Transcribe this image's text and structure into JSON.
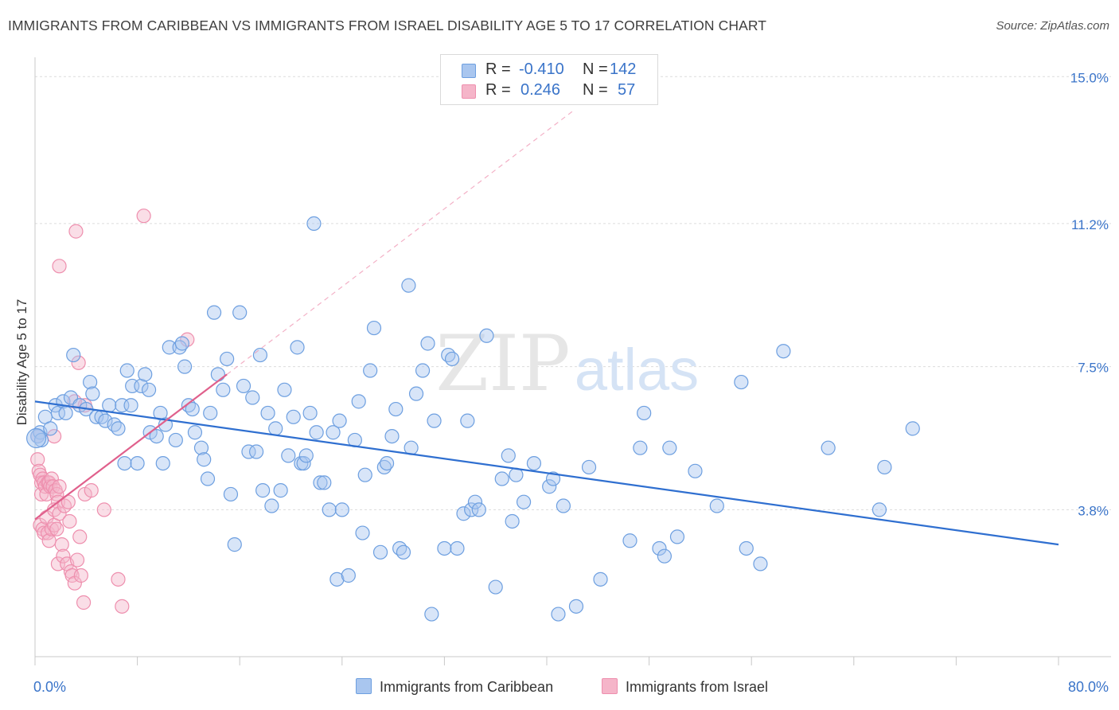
{
  "title": "IMMIGRANTS FROM CARIBBEAN VS IMMIGRANTS FROM ISRAEL DISABILITY AGE 5 TO 17 CORRELATION CHART",
  "source": "Source: ZipAtlas.com",
  "watermark": {
    "zip": "ZIP",
    "atlas": "atlas"
  },
  "legend": {
    "r_label": "R =",
    "n_label": "N =",
    "rows": [
      {
        "r": "-0.410",
        "n": "142"
      },
      {
        "r": "0.246",
        "n": "57"
      }
    ]
  },
  "colors": {
    "blue_fill": "#a9c6ef",
    "blue_stroke": "#6d9fe0",
    "blue_line": "#2f6fd0",
    "pink_fill": "#f5b5c9",
    "pink_stroke": "#ee8fae",
    "pink_line": "#e0608c",
    "tick_label": "#3a74c9"
  },
  "chart_data": {
    "type": "scatter",
    "title": "IMMIGRANTS FROM CARIBBEAN VS IMMIGRANTS FROM ISRAEL DISABILITY AGE 5 TO 17 CORRELATION CHART",
    "xlabel": "",
    "ylabel": "Disability Age 5 to 17",
    "xlim": [
      0,
      80
    ],
    "ylim": [
      0,
      15.5
    ],
    "x_tick_labels": [
      "0.0%",
      "80.0%"
    ],
    "y_ticks": [
      3.8,
      7.5,
      11.2,
      15.0
    ],
    "y_tick_labels": [
      "3.8%",
      "7.5%",
      "11.2%",
      "15.0%"
    ],
    "grid": true,
    "legend_position": "top-center",
    "series": [
      {
        "name": "Immigrants from Caribbean",
        "R": -0.41,
        "N": 142,
        "trend": [
          [
            0,
            6.6
          ],
          [
            80,
            2.9
          ]
        ],
        "points": [
          [
            0.2,
            5.7
          ],
          [
            0.4,
            5.8
          ],
          [
            0.5,
            5.6
          ],
          [
            0.8,
            6.2
          ],
          [
            1.2,
            5.9
          ],
          [
            1.6,
            6.5
          ],
          [
            1.8,
            6.3
          ],
          [
            2.2,
            6.6
          ],
          [
            2.4,
            6.3
          ],
          [
            2.8,
            6.7
          ],
          [
            3.0,
            7.8
          ],
          [
            3.5,
            6.5
          ],
          [
            4.0,
            6.4
          ],
          [
            4.3,
            7.1
          ],
          [
            4.5,
            6.8
          ],
          [
            4.8,
            6.2
          ],
          [
            5.2,
            6.2
          ],
          [
            5.5,
            6.1
          ],
          [
            5.8,
            6.5
          ],
          [
            6.2,
            6.0
          ],
          [
            6.5,
            5.9
          ],
          [
            6.8,
            6.5
          ],
          [
            7.0,
            5.0
          ],
          [
            7.2,
            7.4
          ],
          [
            7.5,
            6.5
          ],
          [
            7.6,
            7.0
          ],
          [
            8.0,
            5.0
          ],
          [
            8.3,
            7.0
          ],
          [
            8.6,
            7.3
          ],
          [
            8.9,
            6.9
          ],
          [
            9.0,
            5.8
          ],
          [
            9.5,
            5.7
          ],
          [
            9.8,
            6.3
          ],
          [
            10.0,
            5.0
          ],
          [
            10.2,
            6.0
          ],
          [
            10.5,
            8.0
          ],
          [
            11.0,
            5.6
          ],
          [
            11.3,
            8.0
          ],
          [
            11.5,
            8.1
          ],
          [
            11.7,
            7.5
          ],
          [
            12.0,
            6.5
          ],
          [
            12.3,
            6.4
          ],
          [
            12.5,
            5.8
          ],
          [
            13.0,
            5.4
          ],
          [
            13.2,
            5.1
          ],
          [
            13.5,
            4.6
          ],
          [
            13.7,
            6.3
          ],
          [
            14.0,
            8.9
          ],
          [
            14.3,
            7.3
          ],
          [
            14.7,
            6.9
          ],
          [
            15.0,
            7.7
          ],
          [
            15.3,
            4.2
          ],
          [
            15.6,
            2.9
          ],
          [
            16.0,
            8.9
          ],
          [
            16.3,
            7.0
          ],
          [
            16.7,
            5.3
          ],
          [
            17.0,
            6.7
          ],
          [
            17.3,
            5.3
          ],
          [
            17.6,
            7.8
          ],
          [
            17.8,
            4.3
          ],
          [
            18.2,
            6.3
          ],
          [
            18.5,
            3.9
          ],
          [
            18.8,
            5.9
          ],
          [
            19.2,
            4.3
          ],
          [
            19.5,
            6.9
          ],
          [
            19.8,
            5.2
          ],
          [
            20.2,
            6.2
          ],
          [
            20.5,
            8.0
          ],
          [
            20.8,
            5.0
          ],
          [
            21.0,
            5.0
          ],
          [
            21.2,
            5.2
          ],
          [
            21.5,
            6.3
          ],
          [
            21.8,
            11.2
          ],
          [
            22.0,
            5.8
          ],
          [
            22.3,
            4.5
          ],
          [
            22.6,
            4.5
          ],
          [
            23.0,
            3.8
          ],
          [
            23.3,
            5.8
          ],
          [
            23.6,
            2.0
          ],
          [
            23.8,
            6.1
          ],
          [
            24.0,
            3.8
          ],
          [
            24.5,
            2.1
          ],
          [
            25.0,
            5.6
          ],
          [
            25.3,
            6.6
          ],
          [
            25.6,
            3.2
          ],
          [
            25.8,
            4.7
          ],
          [
            26.2,
            7.4
          ],
          [
            26.5,
            8.5
          ],
          [
            27.0,
            2.7
          ],
          [
            27.3,
            4.9
          ],
          [
            27.5,
            5.0
          ],
          [
            27.9,
            5.7
          ],
          [
            28.2,
            6.4
          ],
          [
            28.5,
            2.8
          ],
          [
            28.8,
            2.7
          ],
          [
            29.2,
            9.6
          ],
          [
            29.4,
            5.4
          ],
          [
            29.8,
            6.8
          ],
          [
            30.3,
            7.4
          ],
          [
            30.7,
            8.1
          ],
          [
            31.0,
            1.1
          ],
          [
            31.2,
            6.1
          ],
          [
            32.0,
            2.8
          ],
          [
            32.3,
            7.8
          ],
          [
            32.6,
            7.7
          ],
          [
            33.0,
            2.8
          ],
          [
            33.5,
            3.7
          ],
          [
            33.8,
            6.1
          ],
          [
            34.1,
            3.8
          ],
          [
            34.4,
            4.0
          ],
          [
            34.7,
            3.8
          ],
          [
            35.3,
            8.3
          ],
          [
            36.0,
            1.8
          ],
          [
            36.5,
            4.6
          ],
          [
            37.0,
            5.2
          ],
          [
            37.3,
            3.5
          ],
          [
            37.6,
            4.7
          ],
          [
            38.2,
            4.0
          ],
          [
            39.0,
            5.0
          ],
          [
            40.2,
            4.4
          ],
          [
            40.5,
            4.6
          ],
          [
            40.9,
            1.1
          ],
          [
            41.3,
            3.9
          ],
          [
            42.3,
            1.3
          ],
          [
            43.3,
            4.9
          ],
          [
            44.2,
            2.0
          ],
          [
            46.5,
            3.0
          ],
          [
            47.3,
            5.4
          ],
          [
            47.6,
            6.3
          ],
          [
            48.8,
            2.8
          ],
          [
            49.2,
            2.6
          ],
          [
            49.6,
            5.4
          ],
          [
            50.2,
            3.1
          ],
          [
            51.6,
            4.8
          ],
          [
            53.3,
            3.9
          ],
          [
            55.2,
            7.1
          ],
          [
            55.6,
            2.8
          ],
          [
            56.7,
            2.4
          ],
          [
            58.5,
            7.9
          ],
          [
            62.0,
            5.4
          ],
          [
            66.0,
            3.8
          ],
          [
            66.4,
            4.9
          ],
          [
            68.6,
            5.9
          ]
        ]
      },
      {
        "name": "Immigrants from Israel",
        "R": 0.246,
        "N": 57,
        "trend": [
          [
            0,
            3.55
          ],
          [
            15,
            7.3
          ]
        ],
        "trend_extended": [
          [
            15,
            7.3
          ],
          [
            42,
            14.1
          ]
        ],
        "points": [
          [
            0.2,
            5.7
          ],
          [
            0.2,
            5.1
          ],
          [
            0.3,
            4.8
          ],
          [
            0.4,
            4.7
          ],
          [
            0.5,
            4.5
          ],
          [
            0.5,
            4.2
          ],
          [
            0.6,
            4.6
          ],
          [
            0.7,
            4.5
          ],
          [
            0.8,
            4.4
          ],
          [
            0.9,
            4.2
          ],
          [
            1.0,
            4.5
          ],
          [
            1.1,
            4.5
          ],
          [
            1.2,
            4.4
          ],
          [
            1.3,
            4.6
          ],
          [
            1.4,
            4.4
          ],
          [
            1.5,
            5.7
          ],
          [
            1.6,
            4.3
          ],
          [
            1.7,
            4.2
          ],
          [
            1.8,
            4.0
          ],
          [
            1.9,
            4.4
          ],
          [
            0.4,
            3.4
          ],
          [
            0.6,
            3.3
          ],
          [
            0.7,
            3.2
          ],
          [
            0.9,
            3.6
          ],
          [
            1.0,
            3.2
          ],
          [
            1.1,
            3.0
          ],
          [
            1.3,
            3.3
          ],
          [
            1.5,
            3.4
          ],
          [
            1.5,
            3.8
          ],
          [
            1.7,
            3.3
          ],
          [
            1.8,
            2.4
          ],
          [
            1.9,
            3.7
          ],
          [
            2.1,
            2.9
          ],
          [
            2.2,
            2.6
          ],
          [
            2.3,
            3.9
          ],
          [
            2.5,
            2.4
          ],
          [
            2.6,
            4.0
          ],
          [
            2.7,
            3.5
          ],
          [
            2.8,
            2.2
          ],
          [
            2.9,
            2.1
          ],
          [
            3.1,
            1.9
          ],
          [
            3.3,
            2.5
          ],
          [
            3.5,
            3.1
          ],
          [
            3.6,
            2.1
          ],
          [
            3.8,
            1.4
          ],
          [
            3.9,
            6.5
          ],
          [
            3.9,
            4.2
          ],
          [
            4.4,
            4.3
          ],
          [
            5.4,
            3.8
          ],
          [
            6.5,
            2.0
          ],
          [
            6.8,
            1.3
          ],
          [
            8.5,
            11.4
          ],
          [
            1.9,
            10.1
          ],
          [
            3.2,
            11.0
          ],
          [
            3.4,
            7.6
          ],
          [
            11.9,
            8.2
          ],
          [
            3.1,
            6.6
          ]
        ]
      }
    ]
  }
}
